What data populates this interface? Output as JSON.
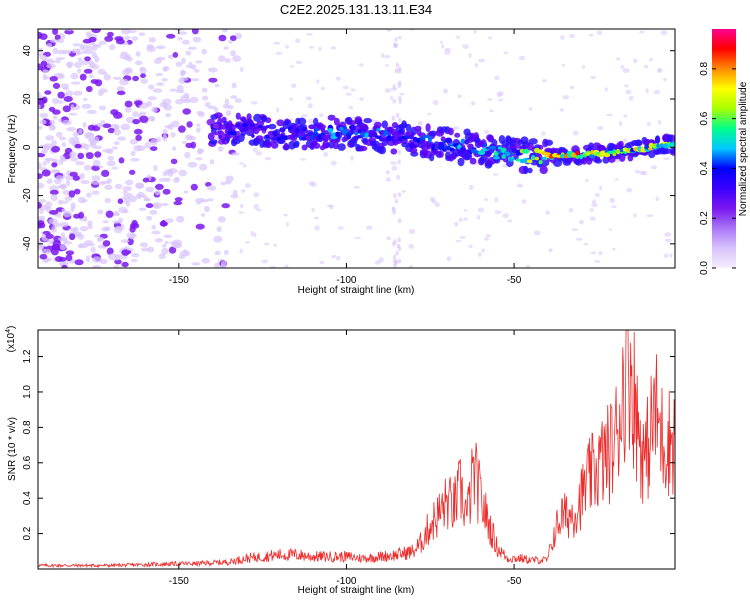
{
  "title": "C2E2.2025.131.13.11.E34",
  "colors": {
    "signal_line": "#ee2b2b",
    "frame": "#000000",
    "scatter_dark": "#7a16f0",
    "scatter_light": "#d9c4fb"
  },
  "chart_data": [
    {
      "id": "spectrogram",
      "type": "heatmap",
      "xlabel": "Height of straight line (km)",
      "ylabel": "Frequency (Hz)",
      "xlim": [
        -192,
        -2
      ],
      "ylim": [
        -50,
        49
      ],
      "xticks": [
        -150,
        -100,
        -50
      ],
      "yticks": [
        -40,
        -20,
        0,
        20,
        40
      ],
      "colorbar": {
        "label": "Normalized spectral amplitude",
        "range": [
          0.0,
          0.96
        ],
        "ticks": [
          0.0,
          0.2,
          0.4,
          0.6,
          0.8
        ],
        "tick_labels": [
          "0.0",
          "0.2",
          "0.4",
          "0.6",
          "0.8"
        ],
        "colormap": [
          "#f4eefe",
          "#d8c3fb",
          "#a875f5",
          "#7a16f0",
          "#3a00ff",
          "#0000ff",
          "#00c8ff",
          "#00ff8c",
          "#a8ff00",
          "#ffff00",
          "#ff8c00",
          "#ff0000",
          "#ff0090"
        ]
      },
      "ridge": {
        "x": [
          -140,
          -130,
          -120,
          -110,
          -100,
          -90,
          -80,
          -70,
          -60,
          -50,
          -40,
          -30,
          -20,
          -10,
          -2
        ],
        "frequency": [
          7,
          7,
          6,
          6,
          6,
          5,
          3,
          1,
          -1,
          -3,
          -4,
          -3,
          -2,
          0,
          1
        ],
        "amplitude": [
          0.35,
          0.4,
          0.38,
          0.45,
          0.5,
          0.45,
          0.4,
          0.45,
          0.5,
          0.6,
          0.85,
          0.85,
          0.7,
          0.75,
          0.7
        ]
      }
    },
    {
      "id": "snr",
      "type": "line",
      "xlabel": "Height of straight line (km)",
      "ylabel": "SNR (10 * v/v)",
      "y_scale_label": "(x10",
      "y_scale_exp": "4",
      "y_scale_close": ")",
      "xlim": [
        -192,
        -2
      ],
      "ylim": [
        0,
        1.35
      ],
      "xticks": [
        -150,
        -100,
        -50
      ],
      "yticks": [
        0.2,
        0.4,
        0.6,
        0.8,
        1.0,
        1.2
      ],
      "series": [
        {
          "color": "#ee2b2b",
          "x": [
            -192,
            -180,
            -170,
            -160,
            -150,
            -145,
            -140,
            -135,
            -130,
            -125,
            -120,
            -115,
            -110,
            -105,
            -100,
            -95,
            -90,
            -85,
            -80,
            -78,
            -75,
            -72,
            -70,
            -68,
            -66,
            -64,
            -62,
            -60,
            -58,
            -55,
            -52,
            -50,
            -48,
            -45,
            -42,
            -40,
            -38,
            -36,
            -34,
            -32,
            -30,
            -28,
            -26,
            -24,
            -22,
            -20,
            -18,
            -16,
            -14,
            -13,
            -12,
            -11,
            -10,
            -8,
            -6,
            -4,
            -2
          ],
          "y": [
            0.02,
            0.02,
            0.02,
            0.025,
            0.03,
            0.03,
            0.035,
            0.04,
            0.06,
            0.07,
            0.08,
            0.08,
            0.07,
            0.07,
            0.07,
            0.06,
            0.07,
            0.08,
            0.1,
            0.14,
            0.25,
            0.32,
            0.38,
            0.35,
            0.45,
            0.3,
            0.55,
            0.4,
            0.28,
            0.12,
            0.06,
            0.06,
            0.06,
            0.05,
            0.05,
            0.05,
            0.2,
            0.3,
            0.3,
            0.32,
            0.4,
            0.5,
            0.55,
            0.6,
            0.65,
            0.7,
            0.95,
            1.25,
            0.95,
            0.8,
            0.7,
            0.6,
            0.7,
            0.9,
            0.75,
            0.72,
            0.75
          ]
        }
      ]
    }
  ]
}
